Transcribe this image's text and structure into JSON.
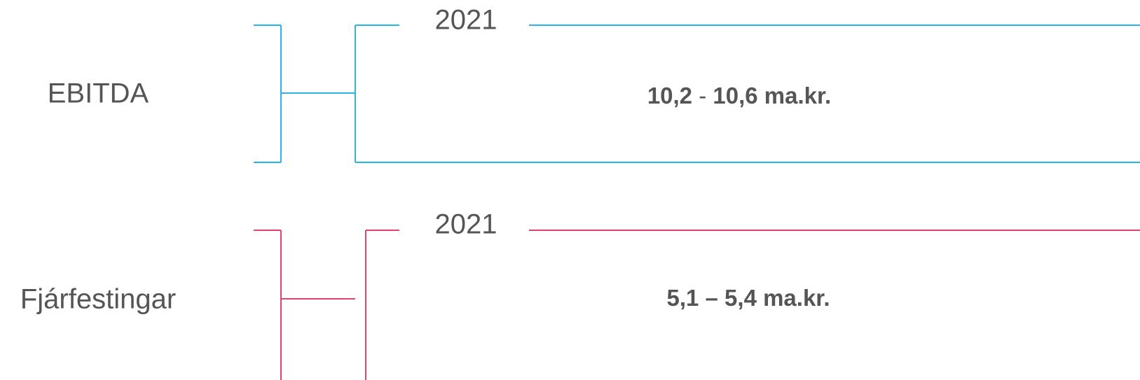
{
  "rows": [
    {
      "label": "EBITDA",
      "year": "2021",
      "value_parts": [
        "10,2",
        " - ",
        "10,6 ma.kr."
      ]
    },
    {
      "label": "Fjárfestingar",
      "year": "2021",
      "value_parts": [
        "5,1 – 5,4 ma.kr."
      ]
    }
  ]
}
